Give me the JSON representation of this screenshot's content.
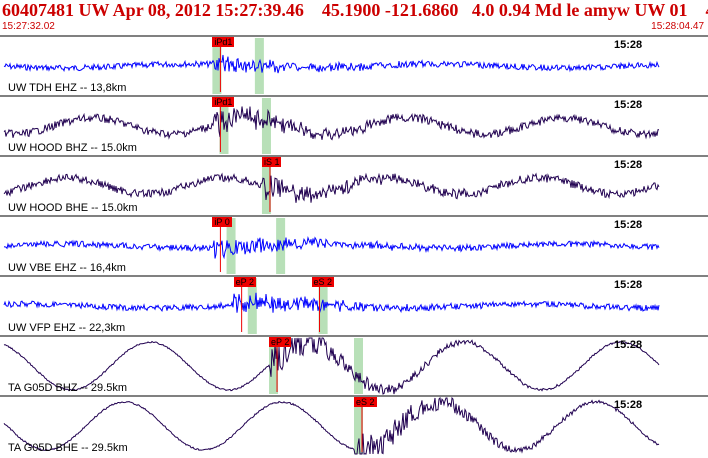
{
  "header": {
    "title": "60407481 UW Apr 08, 2012 15:27:39.46    45.1900 -121.6860   4.0 0.94 Md le amyw UW 01    4",
    "start_time": "15:27:32.02",
    "end_time": "15:28:04.47"
  },
  "colors": {
    "header_red": "#cc0000",
    "trace_blue": "#0000ff",
    "trace_dark": "#200050",
    "pick_red": "#ee0000",
    "window_green": "#b8e0b8"
  },
  "panels": [
    {
      "label": "UW TDH EHZ -- 13,8km",
      "time_label": "15:28",
      "color": "blue",
      "picks": [
        {
          "text": "iPd1",
          "pos": 0.3
        }
      ],
      "green": [
        0.3,
        0.36
      ],
      "amp": 0.35
    },
    {
      "label": "UW HOOD BHZ -- 15.0km",
      "time_label": "15:28",
      "color": "dark",
      "picks": [
        {
          "text": "iPd1",
          "pos": 0.3
        }
      ],
      "green": [
        0.31,
        0.37
      ],
      "amp": 0.55
    },
    {
      "label": "UW HOOD BHE -- 15.0km",
      "time_label": "15:28",
      "color": "dark",
      "picks": [
        {
          "text": "iS 1",
          "pos": 0.37
        }
      ],
      "green": [
        0.37
      ],
      "amp": 0.55
    },
    {
      "label": "UW VBE EHZ -- 16,4km",
      "time_label": "15:28",
      "color": "blue",
      "picks": [
        {
          "text": "iP 0",
          "pos": 0.3
        }
      ],
      "green": [
        0.32,
        0.39
      ],
      "amp": 0.45
    },
    {
      "label": "UW VFP EHZ -- 22,3km",
      "time_label": "15:28",
      "color": "blue",
      "picks": [
        {
          "text": "eP 2",
          "pos": 0.33
        },
        {
          "text": "eS 2",
          "pos": 0.44
        }
      ],
      "green": [
        0.35,
        0.45
      ],
      "amp": 0.5
    },
    {
      "label": "TA G05D BHZ -- 29.5km",
      "time_label": "15:28",
      "color": "dark",
      "picks": [
        {
          "text": "eP 2",
          "pos": 0.38
        }
      ],
      "green": [
        0.38,
        0.5
      ],
      "amp": 0.8
    },
    {
      "label": "TA G05D BHE -- 29.5km",
      "time_label": "15:28",
      "color": "dark",
      "picks": [
        {
          "text": "eS 2",
          "pos": 0.5
        }
      ],
      "green": [
        0.5
      ],
      "amp": 0.8
    }
  ]
}
